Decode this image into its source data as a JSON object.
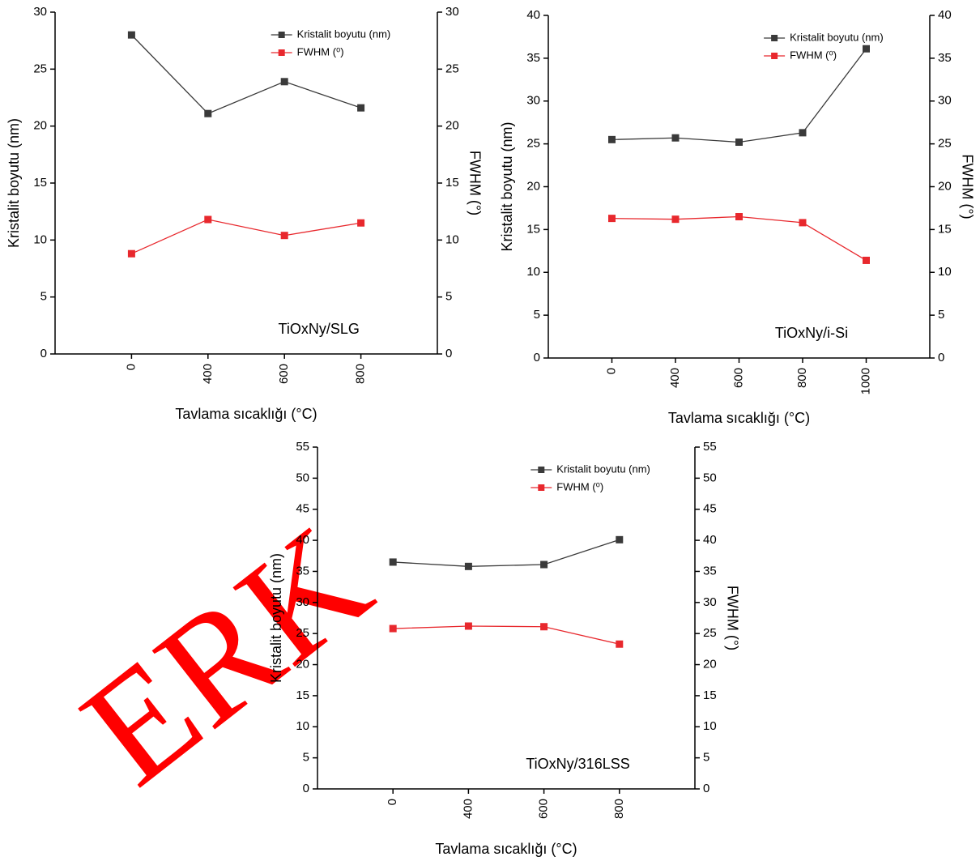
{
  "watermark": "ERK",
  "chart_data": [
    {
      "type": "line",
      "ylabel": "Kristalit boyutu (nm)",
      "y2label": "FWHM (°)",
      "xlabel": "Tavlama sıcaklığı (°C)",
      "annotation": "TiOxNy/SLG",
      "grid": false,
      "legend": "upper right",
      "categories": [
        "0",
        "400",
        "600",
        "800"
      ],
      "series": [
        {
          "name": "Kristalit boyutu (nm)",
          "color": "#3a3a3a",
          "values": [
            28.0,
            21.1,
            23.9,
            21.6
          ]
        },
        {
          "name": "FWHM (⁰)",
          "color": "#e8282d",
          "axis": "y2",
          "values": [
            8.8,
            11.8,
            10.4,
            11.5
          ]
        }
      ],
      "ylim": [
        0,
        30
      ],
      "yticks": [
        0,
        5,
        10,
        15,
        20,
        25,
        30
      ],
      "y2lim": [
        0,
        30
      ],
      "y2ticks": [
        0,
        5,
        10,
        15,
        20,
        25,
        30
      ]
    },
    {
      "type": "line",
      "ylabel": "Kristalit boyutu (nm)",
      "y2label": "FWHM (°)",
      "xlabel": "Tavlama sıcaklığı (°C)",
      "annotation": "TiOxNy/i-Si",
      "grid": false,
      "legend": "upper right",
      "categories": [
        "0",
        "400",
        "600",
        "800",
        "1000"
      ],
      "series": [
        {
          "name": "Kristalit boyutu (nm)",
          "color": "#3a3a3a",
          "values": [
            25.5,
            25.7,
            25.2,
            26.3,
            36.1
          ]
        },
        {
          "name": "FWHM (⁰)",
          "color": "#e8282d",
          "axis": "y2",
          "values": [
            16.3,
            16.2,
            16.5,
            15.8,
            11.4
          ]
        }
      ],
      "ylim": [
        0,
        40
      ],
      "yticks": [
        0,
        5,
        10,
        15,
        20,
        25,
        30,
        35,
        40
      ],
      "y2lim": [
        0,
        40
      ],
      "y2ticks": [
        0,
        5,
        10,
        15,
        20,
        25,
        30,
        35,
        40
      ]
    },
    {
      "type": "line",
      "ylabel": "Kristalit boyutu (nm)",
      "y2label": "FWHM (°)",
      "xlabel": "Tavlama sıcaklığı (°C)",
      "annotation": "TiOxNy/316LSS",
      "grid": false,
      "legend": "upper right",
      "categories": [
        "0",
        "400",
        "600",
        "800"
      ],
      "series": [
        {
          "name": "Kristalit boyutu (nm)",
          "color": "#3a3a3a",
          "values": [
            36.5,
            35.8,
            36.1,
            40.1
          ]
        },
        {
          "name": "FWHM (⁰)",
          "color": "#e8282d",
          "axis": "y2",
          "values": [
            25.8,
            26.2,
            26.1,
            23.3
          ]
        }
      ],
      "ylim": [
        0,
        55
      ],
      "yticks": [
        0,
        5,
        10,
        15,
        20,
        25,
        30,
        35,
        40,
        45,
        50,
        55
      ],
      "y2lim": [
        0,
        55
      ],
      "y2ticks": [
        0,
        5,
        10,
        15,
        20,
        25,
        30,
        35,
        40,
        45,
        50,
        55
      ]
    }
  ]
}
